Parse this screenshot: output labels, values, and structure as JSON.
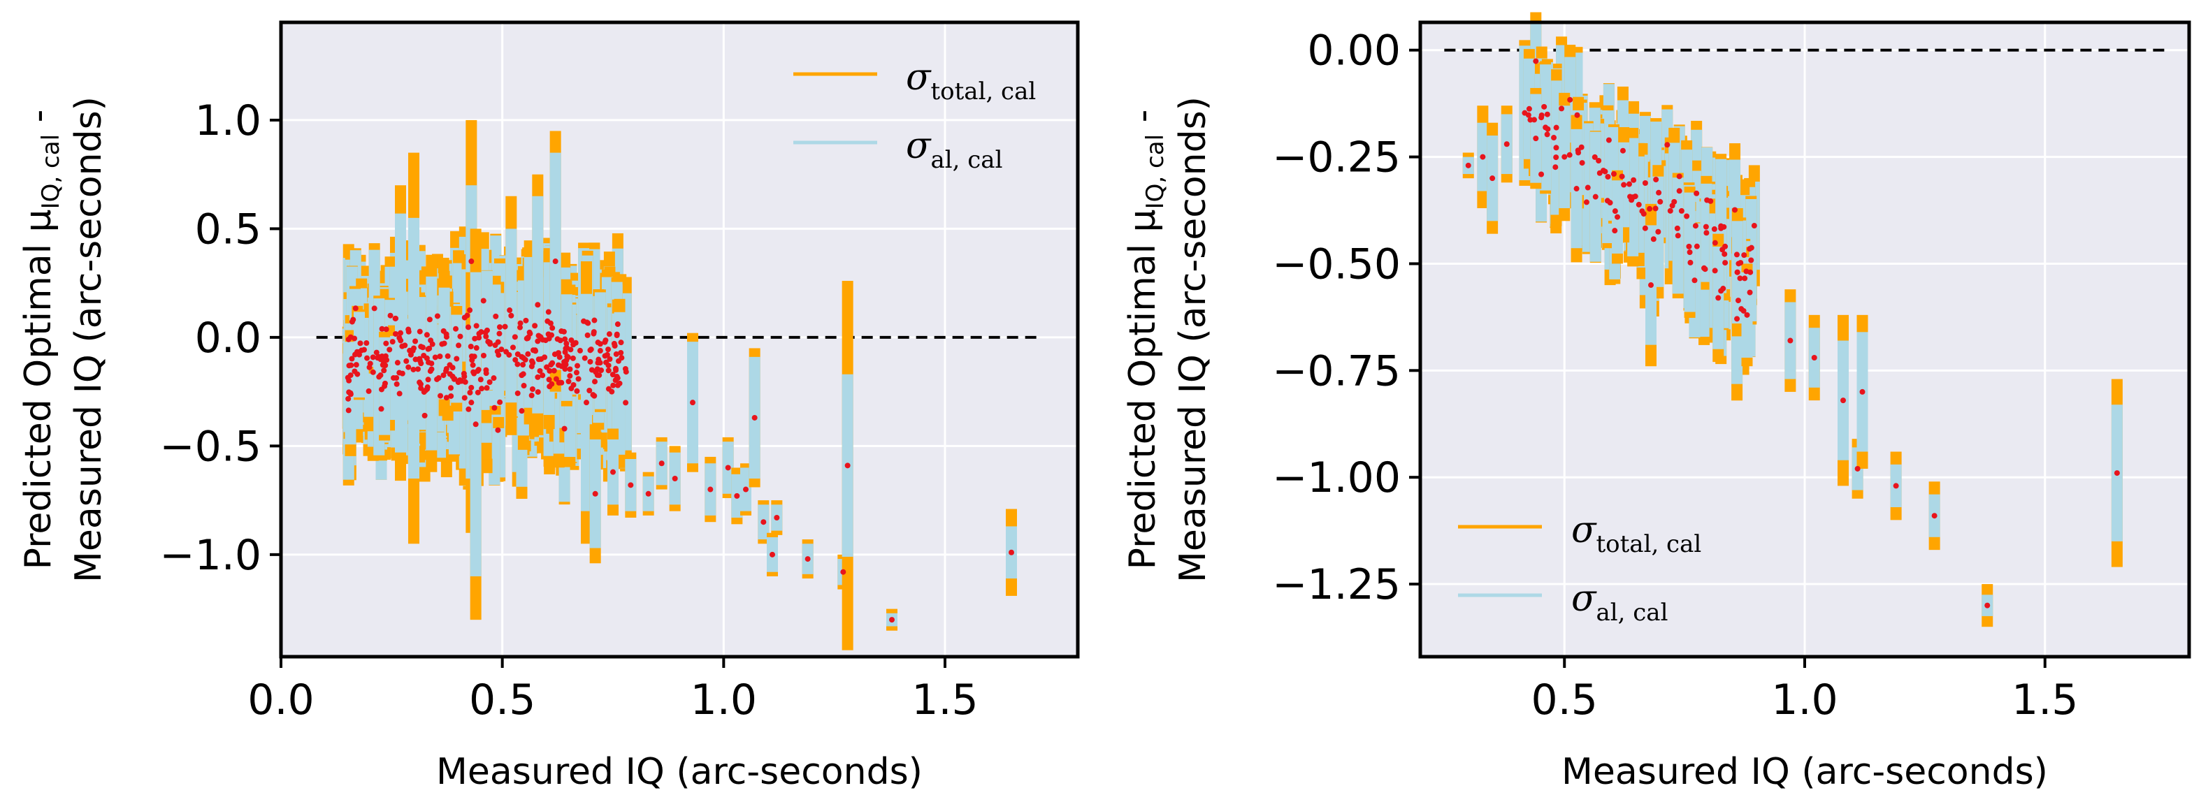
{
  "colors": {
    "total": "#ffa500",
    "al": "#add8e6",
    "point": "#e8141c",
    "panel_bg": "#eaeaf2",
    "grid": "#ffffff",
    "zero_line": "#000000"
  },
  "chart_data": [
    {
      "type": "scatter",
      "title": "",
      "xlabel": "Measured IQ (arc-seconds)",
      "ylabel_line1": "Predicted Optimal μ",
      "ylabel_sub": "IQ, cal",
      "ylabel_tail": " -",
      "ylabel_line2": "Measured IQ (arc-seconds)",
      "xlim": [
        0.0,
        1.8
      ],
      "ylim": [
        -1.47,
        1.45
      ],
      "xticks": [
        0.0,
        0.5,
        1.0,
        1.5
      ],
      "xtick_labels": [
        "0.0",
        "0.5",
        "1.0",
        "1.5"
      ],
      "yticks": [
        1.0,
        0.5,
        0.0,
        -0.5,
        -1.0
      ],
      "ytick_labels": [
        "1.0",
        "0.5",
        "0.0",
        "−0.5",
        "−1.0"
      ],
      "zero_line": {
        "y": 0.0,
        "x_range": [
          0.08,
          1.72
        ]
      },
      "legend": {
        "position": "top-right",
        "entries": [
          {
            "label": "σ",
            "sub": "total, cal"
          },
          {
            "label": "σ",
            "sub": "al, cal"
          }
        ]
      },
      "series": [
        {
          "name": "dense_cluster",
          "x_range": [
            0.15,
            0.78
          ],
          "count": 360,
          "y_center": -0.1,
          "y_spread": 0.22
        },
        {
          "name": "points",
          "points": [
            {
              "x": 0.27,
              "y": 0.02,
              "al": 0.55,
              "tot": 0.68
            },
            {
              "x": 0.3,
              "y": -0.05,
              "al": 0.6,
              "tot": 0.9
            },
            {
              "x": 0.34,
              "y": -0.12,
              "al": 0.4,
              "tot": 0.5
            },
            {
              "x": 0.43,
              "y": 0.35,
              "al": 0.35,
              "tot": 0.65
            },
            {
              "x": 0.43,
              "y": -0.3,
              "al": 0.35,
              "tot": 0.6
            },
            {
              "x": 0.44,
              "y": -0.4,
              "al": 0.7,
              "tot": 0.9
            },
            {
              "x": 0.52,
              "y": 0.1,
              "al": 0.4,
              "tot": 0.55
            },
            {
              "x": 0.58,
              "y": 0.15,
              "al": 0.5,
              "tot": 0.6
            },
            {
              "x": 0.62,
              "y": 0.35,
              "al": 0.5,
              "tot": 0.6
            },
            {
              "x": 0.69,
              "y": -0.3,
              "al": 0.5,
              "tot": 0.65
            },
            {
              "x": 0.71,
              "y": -0.72,
              "al": 0.25,
              "tot": 0.32
            },
            {
              "x": 0.75,
              "y": -0.62,
              "al": 0.15,
              "tot": 0.2
            },
            {
              "x": 0.79,
              "y": -0.68,
              "al": 0.12,
              "tot": 0.15
            },
            {
              "x": 0.83,
              "y": -0.72,
              "al": 0.08,
              "tot": 0.1
            },
            {
              "x": 0.86,
              "y": -0.58,
              "al": 0.1,
              "tot": 0.12
            },
            {
              "x": 0.89,
              "y": -0.65,
              "al": 0.12,
              "tot": 0.15
            },
            {
              "x": 0.93,
              "y": -0.3,
              "al": 0.28,
              "tot": 0.32
            },
            {
              "x": 0.97,
              "y": -0.7,
              "al": 0.12,
              "tot": 0.15
            },
            {
              "x": 1.01,
              "y": -0.6,
              "al": 0.12,
              "tot": 0.14
            },
            {
              "x": 1.03,
              "y": -0.73,
              "al": 0.1,
              "tot": 0.13
            },
            {
              "x": 1.05,
              "y": -0.7,
              "al": 0.1,
              "tot": 0.12
            },
            {
              "x": 1.07,
              "y": -0.37,
              "al": 0.28,
              "tot": 0.32
            },
            {
              "x": 1.09,
              "y": -0.85,
              "al": 0.08,
              "tot": 0.1
            },
            {
              "x": 1.11,
              "y": -1.0,
              "al": 0.08,
              "tot": 0.1
            },
            {
              "x": 1.12,
              "y": -0.83,
              "al": 0.06,
              "tot": 0.08
            },
            {
              "x": 1.19,
              "y": -1.02,
              "al": 0.07,
              "tot": 0.09
            },
            {
              "x": 1.27,
              "y": -1.08,
              "al": 0.06,
              "tot": 0.08
            },
            {
              "x": 1.28,
              "y": -0.59,
              "al": 0.42,
              "tot": 0.85
            },
            {
              "x": 1.38,
              "y": -1.3,
              "al": 0.03,
              "tot": 0.05
            },
            {
              "x": 1.65,
              "y": -0.99,
              "al": 0.12,
              "tot": 0.2
            }
          ]
        }
      ]
    },
    {
      "type": "scatter",
      "title": "",
      "xlabel": "Measured IQ (arc-seconds)",
      "ylabel_line1": "Predicted Optimal μ",
      "ylabel_sub": "IQ, cal",
      "ylabel_tail": " -",
      "ylabel_line2": "Measured IQ (arc-seconds)",
      "xlim": [
        0.2,
        1.8
      ],
      "ylim": [
        -1.42,
        0.065
      ],
      "xticks": [
        0.5,
        1.0,
        1.5
      ],
      "xtick_labels": [
        "0.5",
        "1.0",
        "1.5"
      ],
      "yticks": [
        0.0,
        -0.25,
        -0.5,
        -0.75,
        -1.0,
        -1.25
      ],
      "ytick_labels": [
        "0.00",
        "−0.25",
        "−0.50",
        "−0.75",
        "−1.00",
        "−1.25"
      ],
      "zero_line": {
        "y": 0.0,
        "x_range": [
          0.25,
          1.75
        ]
      },
      "legend": {
        "position": "bottom-left",
        "entries": [
          {
            "label": "σ",
            "sub": "total, cal"
          },
          {
            "label": "σ",
            "sub": "al, cal"
          }
        ]
      },
      "series": [
        {
          "name": "dense_cluster",
          "x_range": [
            0.4,
            0.9
          ],
          "count": 120,
          "y_center": -0.3,
          "y_spread": 0.12
        },
        {
          "name": "points",
          "points": [
            {
              "x": 0.3,
              "y": -0.27,
              "al": 0.02,
              "tot": 0.03
            },
            {
              "x": 0.33,
              "y": -0.25,
              "al": 0.08,
              "tot": 0.12
            },
            {
              "x": 0.35,
              "y": -0.3,
              "al": 0.1,
              "tot": 0.13
            },
            {
              "x": 0.38,
              "y": -0.22,
              "al": 0.07,
              "tot": 0.09
            },
            {
              "x": 0.5,
              "y": -0.25,
              "al": 0.12,
              "tot": 0.15
            },
            {
              "x": 0.68,
              "y": -0.55,
              "al": 0.14,
              "tot": 0.19
            },
            {
              "x": 0.82,
              "y": -0.58,
              "al": 0.12,
              "tot": 0.15
            },
            {
              "x": 0.86,
              "y": -0.52,
              "al": 0.12,
              "tot": 0.15
            },
            {
              "x": 0.88,
              "y": -0.62,
              "al": 0.1,
              "tot": 0.12
            },
            {
              "x": 0.97,
              "y": -0.68,
              "al": 0.09,
              "tot": 0.12
            },
            {
              "x": 1.02,
              "y": -0.72,
              "al": 0.07,
              "tot": 0.1
            },
            {
              "x": 1.08,
              "y": -0.82,
              "al": 0.14,
              "tot": 0.2
            },
            {
              "x": 1.11,
              "y": -0.98,
              "al": 0.05,
              "tot": 0.07
            },
            {
              "x": 1.12,
              "y": -0.8,
              "al": 0.14,
              "tot": 0.18
            },
            {
              "x": 1.19,
              "y": -1.02,
              "al": 0.05,
              "tot": 0.08
            },
            {
              "x": 1.27,
              "y": -1.09,
              "al": 0.05,
              "tot": 0.08
            },
            {
              "x": 1.38,
              "y": -1.3,
              "al": 0.025,
              "tot": 0.05
            },
            {
              "x": 1.65,
              "y": -0.99,
              "al": 0.16,
              "tot": 0.22
            }
          ]
        }
      ]
    }
  ]
}
